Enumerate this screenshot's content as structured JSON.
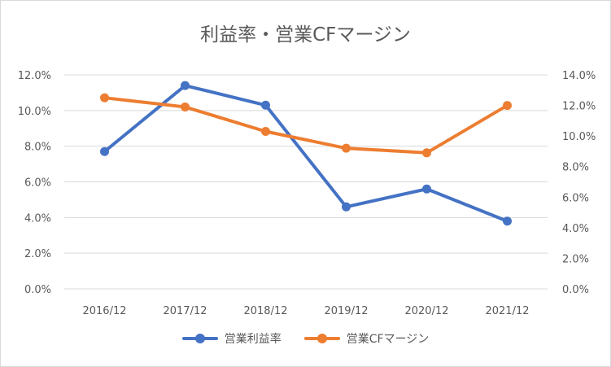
{
  "chart_data": {
    "type": "line",
    "title": "利益率・営業CFマージン",
    "categories": [
      "2016/12",
      "2017/12",
      "2018/12",
      "2019/12",
      "2020/12",
      "2021/12"
    ],
    "left_axis": {
      "ylim": [
        0,
        12
      ],
      "ticks": [
        "0.0%",
        "2.0%",
        "4.0%",
        "6.0%",
        "8.0%",
        "10.0%",
        "12.0%"
      ]
    },
    "right_axis": {
      "ylim": [
        0,
        14
      ],
      "ticks": [
        "0.0%",
        "2.0%",
        "4.0%",
        "6.0%",
        "8.0%",
        "10.0%",
        "12.0%",
        "14.0%"
      ]
    },
    "series": [
      {
        "name": "営業利益率",
        "axis": "left",
        "color": "#4472c4",
        "values": [
          7.7,
          11.4,
          10.3,
          4.6,
          5.6,
          3.8
        ]
      },
      {
        "name": "営業CFマージン",
        "axis": "right",
        "color": "#ed7d31",
        "values": [
          12.5,
          11.9,
          10.3,
          9.2,
          8.9,
          12.0
        ]
      }
    ],
    "grid": true,
    "legend": "bottom"
  }
}
